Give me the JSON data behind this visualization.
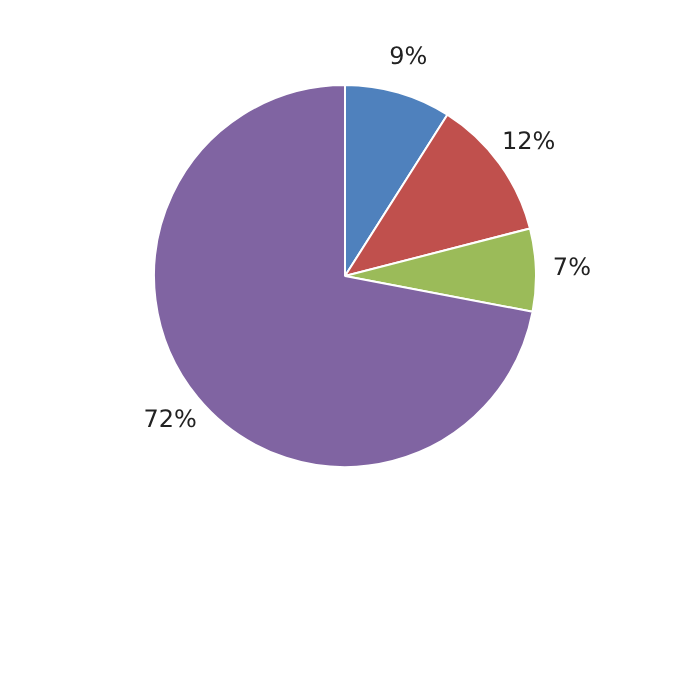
{
  "chart_data": {
    "type": "pie",
    "categories": [
      null,
      null,
      null,
      null
    ],
    "values": [
      9,
      12,
      7,
      72
    ],
    "colors": [
      "#4f81bd",
      "#c0504d",
      "#9bbb59",
      "#8064a2"
    ],
    "value_labels": [
      "9%",
      "12%",
      "7%",
      "72%"
    ],
    "legend": false
  }
}
